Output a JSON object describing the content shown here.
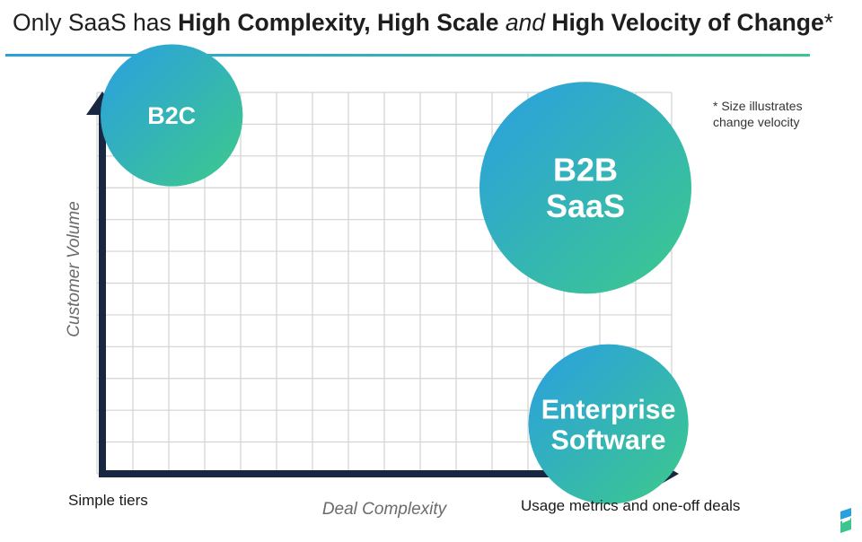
{
  "title": {
    "part1": "Only SaaS has ",
    "part2": "High Complexity, High Scale",
    "part3": " and ",
    "part4": "High Velocity of Change",
    "part5": "*"
  },
  "footnote": "* Size illustrates\nchange velocity",
  "chart_data": {
    "type": "scatter",
    "title": "Only SaaS has High Complexity, High Scale and High Velocity of Change*",
    "xlabel": "Deal Complexity",
    "ylabel": "Customer Volume",
    "x_low_label": "Simple tiers",
    "x_high_label": "Usage metrics and one-off deals",
    "grid": true,
    "xlim": [
      0,
      1
    ],
    "ylim": [
      0,
      1
    ],
    "points": [
      {
        "lines": [
          "B2C"
        ],
        "x": 0.13,
        "y": 0.94,
        "size": 0.45
      },
      {
        "lines": [
          "B2B",
          "SaaS"
        ],
        "x": 0.85,
        "y": 0.75,
        "size": 1.0
      },
      {
        "lines": [
          "Enterprise",
          "Software"
        ],
        "x": 0.89,
        "y": 0.13,
        "size": 0.57
      }
    ],
    "footnote": "* Size illustrates change velocity"
  },
  "colors": {
    "bubble_start": "#2a9fe2",
    "bubble_end": "#3dc98a",
    "axis": "#1a2740",
    "grid": "#d3d3d3",
    "rule_start": "#2a9fde",
    "rule_end": "#3cc58e"
  },
  "logo": "brand-logo-icon"
}
